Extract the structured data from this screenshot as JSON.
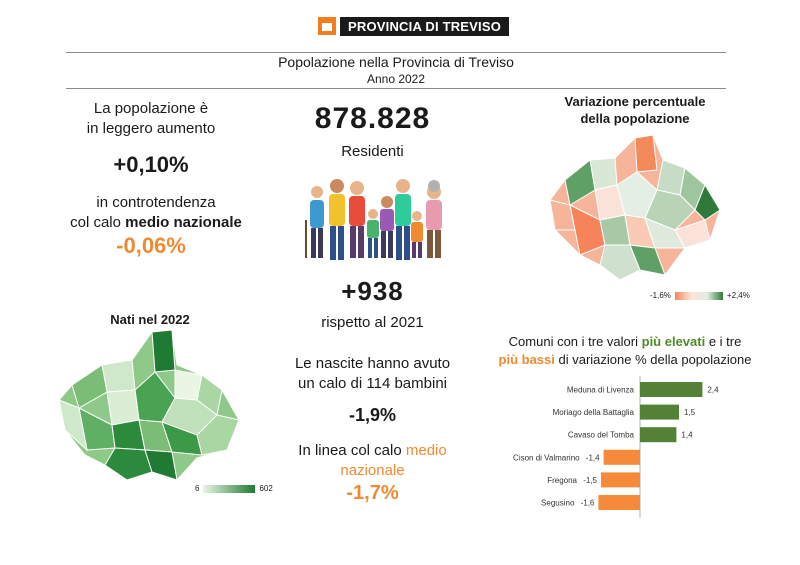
{
  "header": {
    "logo_text": "PROVINCIA DI TREVISO",
    "title": "Popolazione nella Provincia di Treviso",
    "subtitle": "Anno 2022"
  },
  "left": {
    "line1a": "La popolazione è",
    "line1b": "in leggero aumento",
    "growth": "+0,10%",
    "line2a": "in controtendenza",
    "line2b_pre": "col calo ",
    "line2b_bold": "medio nazionale",
    "national": "-0,06%"
  },
  "center": {
    "residents": "878.828",
    "residents_label": "Residenti",
    "delta": "+938",
    "delta_label": "rispetto al 2021",
    "births_a": "Le nascite hanno avuto",
    "births_b": "un calo di 114 bambini",
    "births_pct": "-1,9%",
    "inline_pre": "In linea col calo ",
    "inline_orange": "medio nazionale",
    "national_births": "-1,7%"
  },
  "map_variation": {
    "title_a": "Variazione percentuale",
    "title_b": "della popolazione",
    "legend_min": "-1,6%",
    "legend_max": "+2,4%",
    "colors": {
      "low": "#f6845a",
      "high": "#2f7a3b"
    }
  },
  "map_births": {
    "title": "Nati nel 2022",
    "legend_min": "6",
    "legend_max": "602",
    "colors": {
      "low": "#e9f5e5",
      "high": "#1f7a33"
    }
  },
  "chart_title": {
    "part1": "Comuni con i tre valori ",
    "high": "più elevati",
    "part2": " e i tre",
    "low": "più bassi",
    "part3": " di variazione % della popolazione"
  },
  "chart_data": {
    "type": "bar",
    "orientation": "horizontal",
    "categories": [
      "Meduna di Livenza",
      "Moriago della Battaglia",
      "Cavaso del Tomba",
      "Cison di Valmarino",
      "Fregona",
      "Segusino"
    ],
    "values": [
      2.4,
      1.5,
      1.4,
      -1.4,
      -1.5,
      -1.6
    ],
    "labels": [
      "2,4",
      "1,5",
      "1,4",
      "-1,4",
      "-1,5",
      "-1,6"
    ],
    "colors": {
      "positive": "#538135",
      "negative": "#f58a3a"
    },
    "xlim": [
      -1.6,
      2.4
    ]
  }
}
